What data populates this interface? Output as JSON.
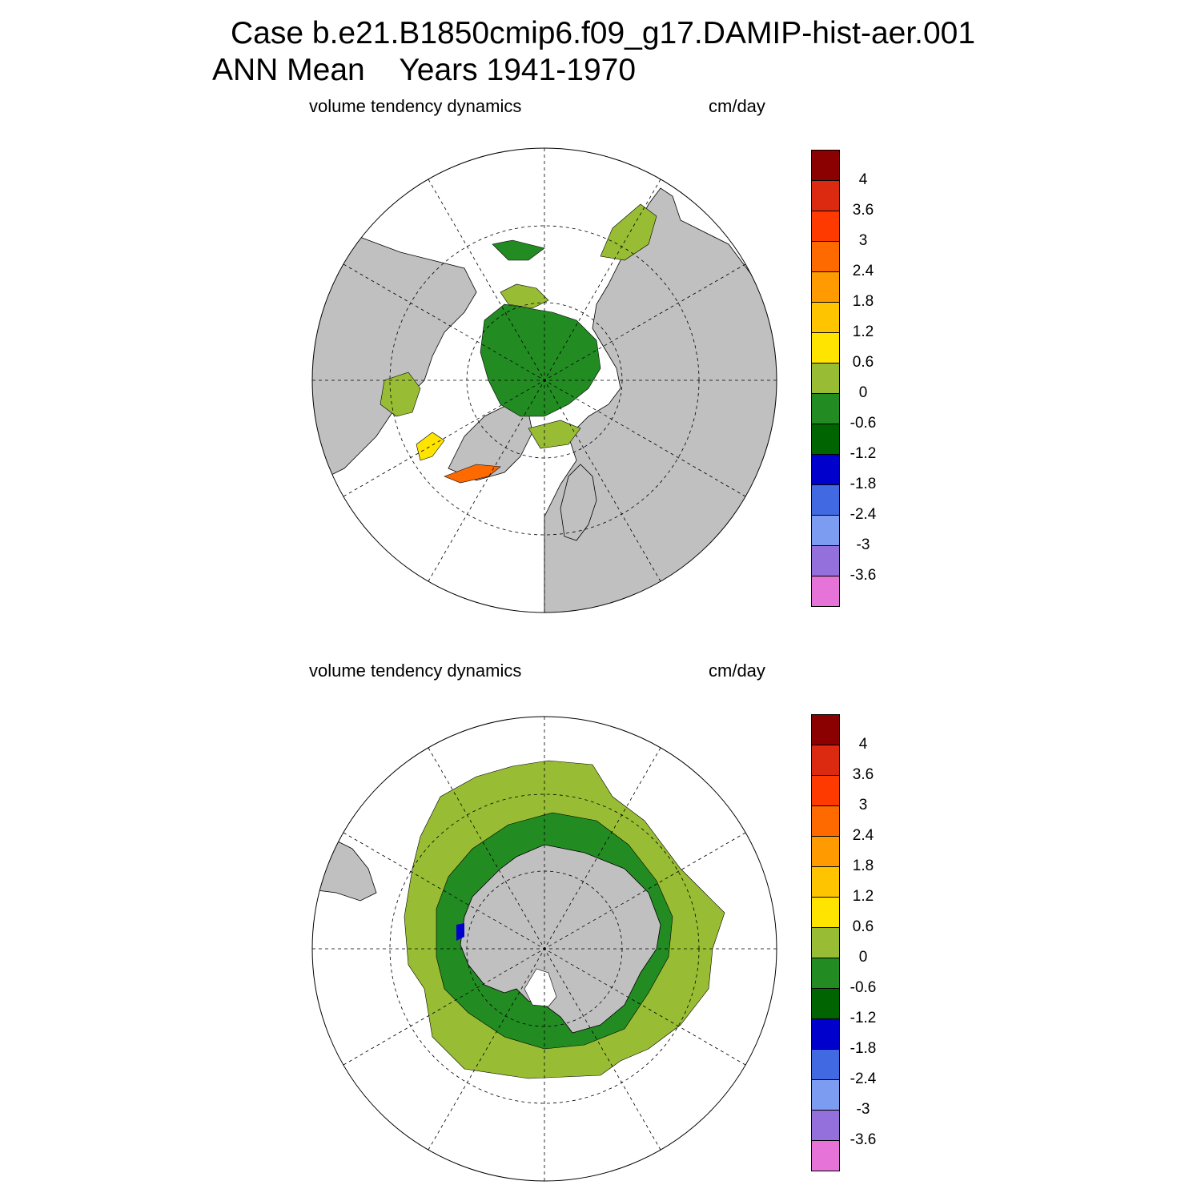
{
  "header": {
    "case_line": "Case b.e21.B1850cmip6.f09_g17.DAMIP-hist-aer.001",
    "period_line": "ANN Mean    Years 1941-1970"
  },
  "panels": [
    {
      "id": "north",
      "left_label": "volume tendency dynamics",
      "right_label": "cm/day"
    },
    {
      "id": "south",
      "left_label": "volume tendency dynamics",
      "right_label": "cm/day"
    }
  ],
  "colorbar": {
    "colors": [
      "#8b0000",
      "#dc2a10",
      "#ff3a00",
      "#ff6a00",
      "#ff9a00",
      "#ffc400",
      "#ffe400",
      "#98bd34",
      "#228b22",
      "#006400",
      "#0000cd",
      "#4169e1",
      "#7b9cf0",
      "#9370db",
      "#e673d8"
    ],
    "labels": [
      "4",
      "3.6",
      "3",
      "2.4",
      "1.8",
      "1.2",
      "0.6",
      "0",
      "-0.6",
      "-1.2",
      "-1.8",
      "-2.4",
      "-3",
      "-3.6"
    ]
  }
}
